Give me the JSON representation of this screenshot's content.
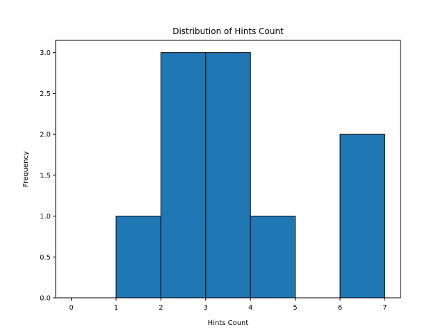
{
  "chart_data": {
    "type": "bar",
    "title": "Distribution of Hints Count",
    "xlabel": "Hints Count",
    "ylabel": "Frequency",
    "bins": [
      [
        0,
        1
      ],
      [
        1,
        2
      ],
      [
        2,
        3
      ],
      [
        3,
        4
      ],
      [
        4,
        5
      ],
      [
        5,
        6
      ],
      [
        6,
        7
      ]
    ],
    "values": [
      0,
      1,
      3,
      3,
      1,
      0,
      2
    ],
    "xlim": [
      -0.35,
      7.35
    ],
    "ylim": [
      0,
      3.15
    ],
    "xticks": [
      0,
      1,
      2,
      3,
      4,
      5,
      6,
      7
    ],
    "xtick_labels": [
      "0",
      "1",
      "2",
      "3",
      "4",
      "5",
      "6",
      "7"
    ],
    "yticks": [
      0,
      0.5,
      1,
      1.5,
      2,
      2.5,
      3
    ],
    "ytick_labels": [
      "0.0",
      "0.5",
      "1.0",
      "1.5",
      "2.0",
      "2.5",
      "3.0"
    ],
    "grid": false,
    "legend": "none",
    "bar_color": "#1f77b4",
    "edge_color": "#000000"
  }
}
